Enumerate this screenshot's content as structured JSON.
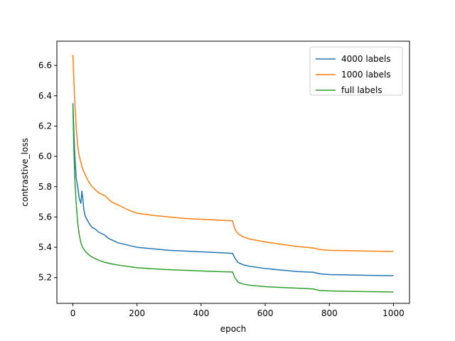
{
  "chart_data": {
    "type": "line",
    "title": "",
    "xlabel": "epoch",
    "ylabel": "contrastive_loss",
    "xlim": [
      -50,
      1050
    ],
    "ylim": [
      5.03,
      6.76
    ],
    "xticks": [
      0,
      200,
      400,
      600,
      800,
      1000
    ],
    "yticks": [
      5.2,
      5.4,
      5.6,
      5.8,
      6.0,
      6.2,
      6.4,
      6.6
    ],
    "grid": false,
    "legend_position": "top-right",
    "series": [
      {
        "name": "4000 labels",
        "color": "#1f77b4",
        "x": [
          0,
          5,
          10,
          15,
          20,
          25,
          28,
          31,
          34,
          38,
          42,
          50,
          60,
          70,
          80,
          90,
          100,
          110,
          120,
          140,
          160,
          180,
          200,
          250,
          300,
          350,
          400,
          450,
          498,
          505,
          515,
          530,
          550,
          600,
          650,
          700,
          750,
          770,
          800,
          850,
          900,
          950,
          1000
        ],
        "y": [
          6.35,
          6.05,
          5.86,
          5.8,
          5.72,
          5.69,
          5.77,
          5.72,
          5.65,
          5.61,
          5.59,
          5.56,
          5.53,
          5.52,
          5.5,
          5.49,
          5.48,
          5.46,
          5.45,
          5.43,
          5.42,
          5.41,
          5.4,
          5.39,
          5.38,
          5.375,
          5.37,
          5.365,
          5.36,
          5.33,
          5.3,
          5.285,
          5.275,
          5.26,
          5.25,
          5.24,
          5.235,
          5.225,
          5.22,
          5.218,
          5.216,
          5.214,
          5.212
        ]
      },
      {
        "name": "1000 labels",
        "color": "#ff7f0e",
        "x": [
          0,
          5,
          10,
          15,
          20,
          30,
          40,
          50,
          60,
          70,
          80,
          90,
          100,
          110,
          120,
          140,
          160,
          180,
          200,
          250,
          300,
          350,
          400,
          450,
          498,
          505,
          515,
          530,
          550,
          600,
          650,
          700,
          750,
          770,
          800,
          850,
          900,
          950,
          1000
        ],
        "y": [
          6.67,
          6.4,
          6.2,
          6.07,
          6.0,
          5.92,
          5.87,
          5.83,
          5.8,
          5.78,
          5.76,
          5.75,
          5.74,
          5.72,
          5.7,
          5.68,
          5.66,
          5.64,
          5.625,
          5.61,
          5.6,
          5.59,
          5.585,
          5.58,
          5.575,
          5.52,
          5.49,
          5.47,
          5.455,
          5.435,
          5.42,
          5.405,
          5.395,
          5.385,
          5.38,
          5.378,
          5.376,
          5.374,
          5.372
        ]
      },
      {
        "name": "full labels",
        "color": "#2ca02c",
        "x": [
          0,
          3,
          6,
          10,
          15,
          20,
          25,
          30,
          40,
          50,
          60,
          70,
          80,
          100,
          120,
          150,
          200,
          250,
          300,
          350,
          400,
          450,
          498,
          505,
          515,
          530,
          550,
          600,
          650,
          700,
          750,
          770,
          800,
          850,
          900,
          950,
          1000
        ],
        "y": [
          6.33,
          6.05,
          5.85,
          5.7,
          5.56,
          5.48,
          5.43,
          5.4,
          5.37,
          5.35,
          5.335,
          5.325,
          5.315,
          5.3,
          5.29,
          5.28,
          5.265,
          5.258,
          5.252,
          5.248,
          5.244,
          5.24,
          5.237,
          5.2,
          5.17,
          5.158,
          5.15,
          5.14,
          5.135,
          5.13,
          5.125,
          5.115,
          5.112,
          5.11,
          5.108,
          5.107,
          5.105
        ]
      }
    ]
  }
}
